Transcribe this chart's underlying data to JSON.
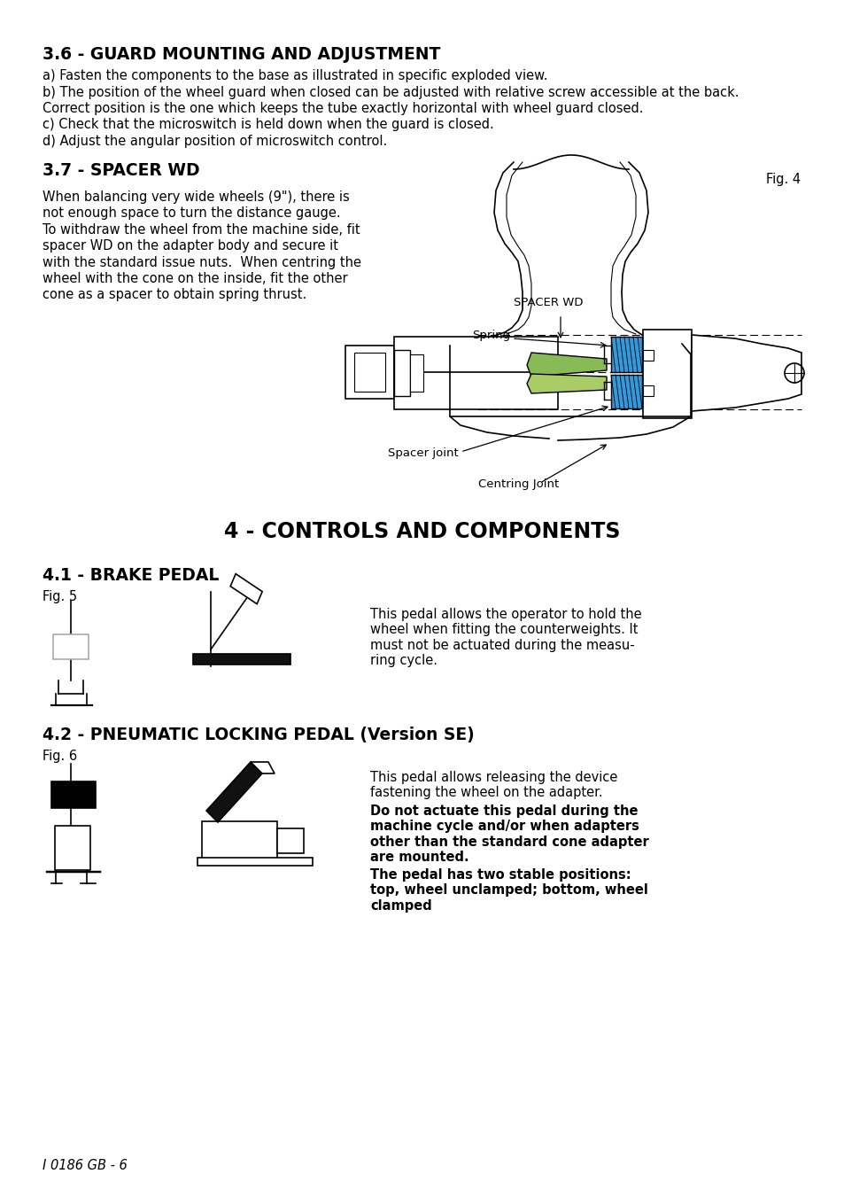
{
  "bg_color": "#ffffff",
  "text_color": "#000000",
  "section_36_title": "3.6 - GUARD MOUNTING AND ADJUSTMENT",
  "section_36_lines": [
    "a) Fasten the components to the base as illustrated in specific exploded view.",
    "b) The position of the wheel guard when closed can be adjusted with relative screw accessible at the back.",
    "Correct position is the one which keeps the tube exactly horizontal with wheel guard closed.",
    "c) Check that the microswitch is held down when the guard is closed.",
    "d) Adjust the angular position of microswitch control."
  ],
  "section_37_title": "3.7 - SPACER WD",
  "section_37_lines": [
    "When balancing very wide wheels (9\"), there is",
    "not enough space to turn the distance gauge.",
    "To withdraw the wheel from the machine side, fit",
    "spacer WD on the adapter body and secure it",
    "with the standard issue nuts.  When centring the",
    "wheel with the cone on the inside, fit the other",
    "cone as a spacer to obtain spring thrust."
  ],
  "fig4_label": "Fig. 4",
  "spacer_wd_label": "SPACER WD",
  "spring_label": "Spring",
  "spacer_joint_label": "Spacer joint",
  "centring_joint_label": "Centring Joint",
  "section_4_title": "4 - CONTROLS AND COMPONENTS",
  "section_41_title": "4.1 - BRAKE PEDAL",
  "fig5_label": "Fig. 5",
  "section_41_text": "This pedal allows the operator to hold the\nwheel when fitting the counterweights. It\nmust not be actuated during the measu-\nring cycle.",
  "section_42_title": "4.2 - PNEUMATIC LOCKING PEDAL (Version SE)",
  "fig6_label": "Fig. 6",
  "section_42_text_normal": "This pedal allows releasing the device\nfastening the wheel on the adapter.",
  "section_42_text_bold": "Do not actuate this pedal during the\nmachine cycle and/or when adapters\nother than the standard cone adapter\nare mounted.",
  "section_42_text_bold2": "The pedal has two stable positions:\ntop, wheel unclamped; bottom, wheel\nclamped",
  "footer_text": "I 0186 GB - 6"
}
